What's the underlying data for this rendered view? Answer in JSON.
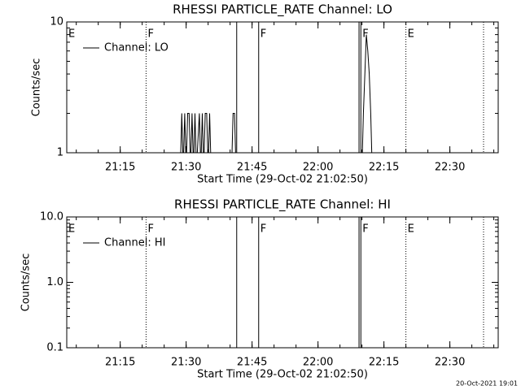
{
  "chart_data": [
    {
      "type": "line",
      "title": "RHESSI PARTICLE_RATE Channel: LO",
      "x_label": "Start Time (29-Oct-02 21:02:50)",
      "y_label": "Counts/sec",
      "xlim": [
        "21:02:50",
        "22:41:00"
      ],
      "xticks": [
        "21:15",
        "21:30",
        "21:45",
        "22:00",
        "22:15",
        "22:30"
      ],
      "ylim": [
        1,
        10
      ],
      "yticks": [
        1,
        10
      ],
      "log_y": true,
      "legend": "upper left",
      "series": [
        {
          "name": "Channel: LO",
          "color": "#000000",
          "x": [
            "21:28:40",
            "21:29:00",
            "21:29:20",
            "21:29:40",
            "21:30:00",
            "21:30:20",
            "21:30:40",
            "21:31:00",
            "21:31:20",
            "21:31:40",
            "21:32:00",
            "21:32:20",
            "21:33:00",
            "21:33:20",
            "21:33:40",
            "21:34:00",
            "21:34:20",
            "21:34:40",
            "21:35:00",
            "21:35:20",
            "21:35:40",
            "21:40:20",
            "21:40:40",
            "21:41:00",
            "21:41:20",
            "22:10:00",
            "22:10:20",
            "22:10:40",
            "22:11:00",
            "22:11:20",
            "22:11:40",
            "22:12:00",
            "22:12:20"
          ],
          "values": [
            0,
            2,
            0,
            2,
            0,
            2,
            2,
            0,
            2,
            0,
            2,
            0,
            2,
            0,
            2,
            0,
            2,
            2,
            0,
            2,
            0,
            0,
            2,
            2,
            0,
            0,
            2,
            4,
            8,
            6,
            4,
            2,
            0
          ]
        }
      ],
      "annotations": [
        {
          "x": "21:02:50",
          "label": "E"
        },
        {
          "x": "21:20:53",
          "style": "dotted",
          "label": "F"
        },
        {
          "x": "21:41:30",
          "style": "solid"
        },
        {
          "x": "21:46:30",
          "style": "solid",
          "label": "F"
        },
        {
          "x": "22:09:20",
          "style": "solid"
        },
        {
          "x": "22:09:45",
          "style": "solid",
          "label": "F"
        },
        {
          "x": "22:20:00",
          "style": "dotted",
          "label": "E"
        },
        {
          "x": "22:37:40",
          "style": "dotted"
        }
      ]
    },
    {
      "type": "line",
      "title": "RHESSI PARTICLE_RATE Channel: HI",
      "x_label": "Start Time (29-Oct-02 21:02:50)",
      "y_label": "Counts/sec",
      "xlim": [
        "21:02:50",
        "22:41:00"
      ],
      "xticks": [
        "21:15",
        "21:30",
        "21:45",
        "22:00",
        "22:15",
        "22:30"
      ],
      "ylim": [
        0.1,
        10
      ],
      "yticks": [
        0.1,
        {
          "value": 1,
          "label": "1.0"
        },
        {
          "value": 10,
          "label": "10.0"
        }
      ],
      "log_y": true,
      "legend": "upper left",
      "series": [
        {
          "name": "Channel: HI",
          "color": "#000000",
          "x": [],
          "values": []
        }
      ],
      "annotations": [
        {
          "x": "21:02:50",
          "label": "E"
        },
        {
          "x": "21:20:53",
          "style": "dotted",
          "label": "F"
        },
        {
          "x": "21:41:30",
          "style": "solid"
        },
        {
          "x": "21:46:30",
          "style": "solid",
          "label": "F"
        },
        {
          "x": "22:09:20",
          "style": "solid"
        },
        {
          "x": "22:09:45",
          "style": "solid",
          "label": "F"
        },
        {
          "x": "22:20:00",
          "style": "dotted",
          "label": "E"
        },
        {
          "x": "22:37:40",
          "style": "dotted"
        }
      ]
    }
  ],
  "footer": "20-Oct-2021 19:01"
}
